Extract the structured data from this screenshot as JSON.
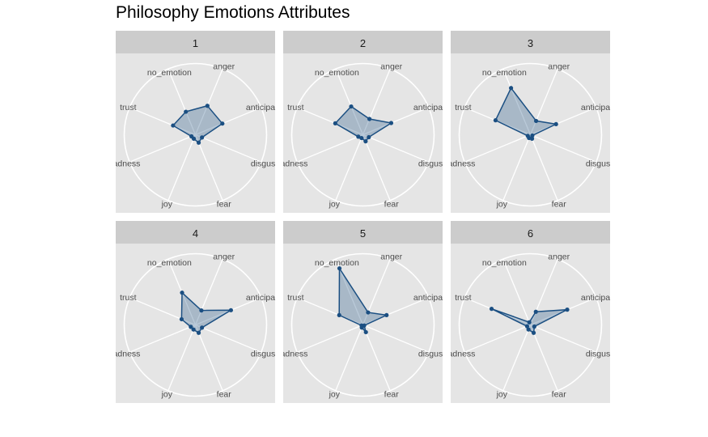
{
  "page_title": "Philosophy Emotions Attributes",
  "chart_data": {
    "type": "radar",
    "title": "Philosophy Emotions Attributes",
    "axes": [
      "no_emotion",
      "anger",
      "anticipation",
      "disgust",
      "fear",
      "joy",
      "sadness",
      "trust"
    ],
    "axis_labels_shown": [
      "no_emotion",
      "anger",
      "anticipati",
      "disgust",
      "fear",
      "joy",
      "adness",
      "trust"
    ],
    "rlim": [
      0,
      1
    ],
    "grid": true,
    "fill_color": "#1b4f82",
    "fill_opacity": 0.3,
    "panel_background": "#e5e5e5",
    "strip_background": "#cccccc",
    "panels": [
      {
        "label": "1",
        "values": [
          0.35,
          0.44,
          0.41,
          0.1,
          0.12,
          0.06,
          0.06,
          0.34
        ]
      },
      {
        "label": "2",
        "values": [
          0.43,
          0.24,
          0.43,
          0.09,
          0.1,
          0.05,
          0.07,
          0.42
        ]
      },
      {
        "label": "3",
        "values": [
          0.71,
          0.21,
          0.39,
          0.03,
          0.06,
          0.05,
          0.04,
          0.53
        ]
      },
      {
        "label": "4",
        "values": [
          0.49,
          0.22,
          0.54,
          0.1,
          0.12,
          0.07,
          0.07,
          0.21
        ]
      },
      {
        "label": "5",
        "values": [
          0.86,
          0.19,
          0.36,
          0.02,
          0.11,
          0.04,
          0.02,
          0.36
        ]
      },
      {
        "label": "6",
        "values": [
          0.04,
          0.2,
          0.56,
          0.06,
          0.12,
          0.07,
          0.05,
          0.59
        ]
      }
    ]
  }
}
